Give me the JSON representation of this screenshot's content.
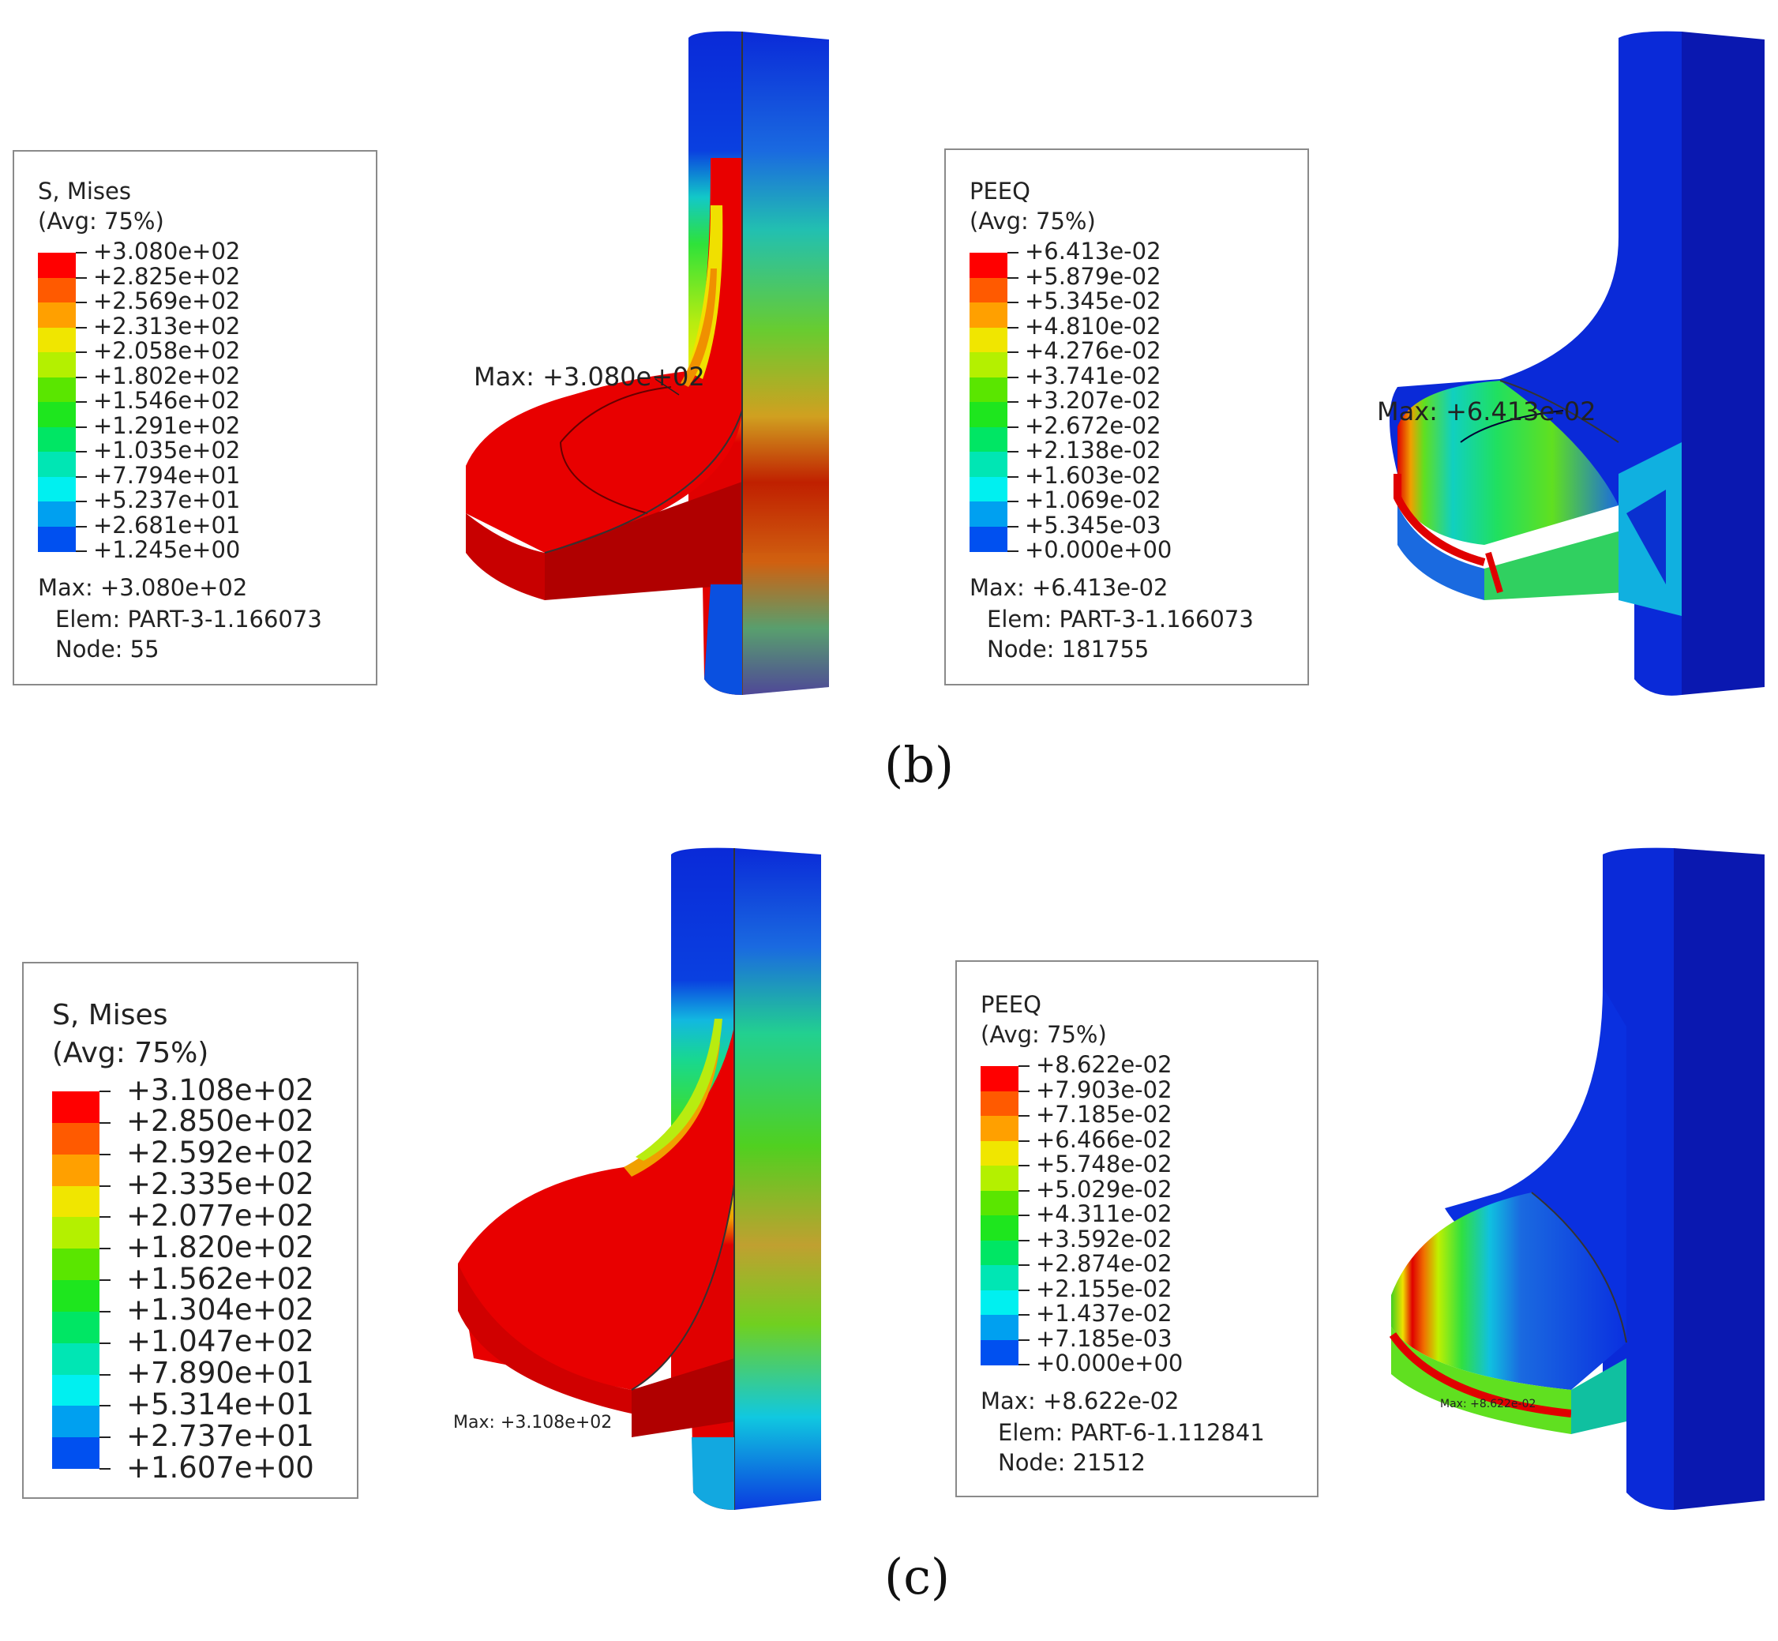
{
  "panels": {
    "b": {
      "label": "(b)",
      "left_legend": {
        "title_line1": "S, Mises",
        "title_line2": "(Avg: 75%)",
        "values": [
          "+3.080e+02",
          "+2.825e+02",
          "+2.569e+02",
          "+2.313e+02",
          "+2.058e+02",
          "+1.802e+02",
          "+1.546e+02",
          "+1.291e+02",
          "+1.035e+02",
          "+7.794e+01",
          "+5.237e+01",
          "+2.681e+01",
          "+1.245e+00"
        ],
        "max_line": "Max: +3.080e+02",
        "elem_line": "Elem: PART-3-1.166073",
        "node_line": "Node: 55"
      },
      "left_model_max": "Max: +3.080e+02",
      "right_legend": {
        "title_line1": "PEEQ",
        "title_line2": "(Avg: 75%)",
        "values": [
          "+6.413e-02",
          "+5.879e-02",
          "+5.345e-02",
          "+4.810e-02",
          "+4.276e-02",
          "+3.741e-02",
          "+3.207e-02",
          "+2.672e-02",
          "+2.138e-02",
          "+1.603e-02",
          "+1.069e-02",
          "+5.345e-03",
          "+0.000e+00"
        ],
        "max_line": "Max: +6.413e-02",
        "elem_line": "Elem: PART-3-1.166073",
        "node_line": "Node: 181755"
      },
      "right_model_max": "Max: +6.413e-02"
    },
    "c": {
      "label": "(c)",
      "left_legend": {
        "title_line1": "S, Mises",
        "title_line2": "(Avg: 75%)",
        "values": [
          "+3.108e+02",
          "+2.850e+02",
          "+2.592e+02",
          "+2.335e+02",
          "+2.077e+02",
          "+1.820e+02",
          "+1.562e+02",
          "+1.304e+02",
          "+1.047e+02",
          "+7.890e+01",
          "+5.314e+01",
          "+2.737e+01",
          "+1.607e+00"
        ]
      },
      "left_model_max": "Max: +3.108e+02",
      "right_legend": {
        "title_line1": "PEEQ",
        "title_line2": "(Avg: 75%)",
        "values": [
          "+8.622e-02",
          "+7.903e-02",
          "+7.185e-02",
          "+6.466e-02",
          "+5.748e-02",
          "+5.029e-02",
          "+4.311e-02",
          "+3.592e-02",
          "+2.874e-02",
          "+2.155e-02",
          "+1.437e-02",
          "+7.185e-03",
          "+0.000e+00"
        ],
        "max_line": "Max: +8.622e-02",
        "elem_line": "Elem: PART-6-1.112841",
        "node_line": "Node: 21512"
      },
      "right_model_max": "Max: +8.622e-02"
    }
  },
  "colormap": [
    "#ff0000",
    "#ff5a00",
    "#ffa000",
    "#f0e600",
    "#b4f000",
    "#5ae600",
    "#1ee61e",
    "#00e664",
    "#00e6b4",
    "#00f0f0",
    "#00a0f0",
    "#0050f0",
    "#0000f0"
  ]
}
